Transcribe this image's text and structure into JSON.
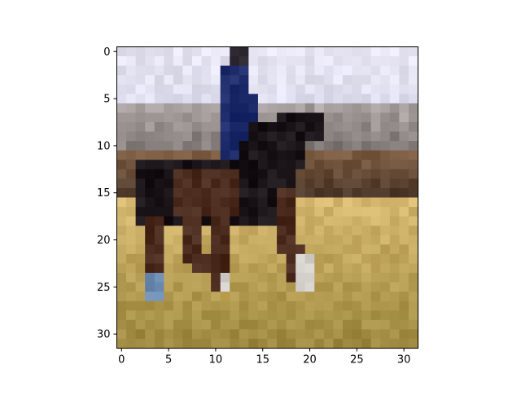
{
  "chart_data": {
    "type": "heatmap",
    "title": "",
    "xlabel": "",
    "ylabel": "",
    "image_size": 32,
    "xlim": [
      -0.5,
      31.5
    ],
    "ylim": [
      31.5,
      -0.5
    ],
    "x_ticks": [
      0,
      5,
      10,
      15,
      20,
      25,
      30
    ],
    "y_ticks": [
      0,
      5,
      10,
      15,
      20,
      25,
      30
    ],
    "x_tick_labels": [
      "0",
      "5",
      "10",
      "15",
      "20",
      "25",
      "30"
    ],
    "y_tick_labels": [
      "0",
      "5",
      "10",
      "15",
      "20",
      "25",
      "30"
    ],
    "palette": {
      "sky": "#e6e4f2",
      "sky_dim": "#d6d8ea",
      "hills_light": "#b0a8a8",
      "hills_mid": "#8a8282",
      "hills_dark": "#6a625e",
      "field_brown": "#7a5a40",
      "field_dark": "#3a2a20",
      "horse_black": "#1a1418",
      "horse_brown": "#4a2a1c",
      "rider_blue": "#1c2a6a",
      "rider_bright": "#2a5ac8",
      "grass_light": "#d6b870",
      "grass_mid": "#c0a250",
      "grass_dark": "#98843a",
      "leg_white": "#d0ccc8",
      "hoof_blue": "#6a8ab0",
      "head_dark": "#302a34"
    },
    "regions": [
      {
        "name": "sky",
        "rows": [
          0,
          6
        ],
        "cols": [
          0,
          31
        ],
        "color": "sky"
      },
      {
        "name": "hills",
        "rows": [
          6,
          11
        ],
        "cols": [
          0,
          31
        ],
        "color": "hills_light"
      },
      {
        "name": "field-dark-band",
        "rows": [
          11,
          16
        ],
        "cols": [
          0,
          31
        ],
        "color": "field_brown"
      },
      {
        "name": "grass",
        "rows": [
          16,
          31
        ],
        "cols": [
          0,
          31
        ],
        "color": "grass_light"
      },
      {
        "name": "rider-body",
        "rows": [
          2,
          13
        ],
        "cols": [
          11,
          14
        ],
        "color": "rider_blue"
      },
      {
        "name": "rider-head",
        "rows": [
          0,
          2
        ],
        "cols": [
          12,
          13
        ],
        "color": "head_dark"
      },
      {
        "name": "rider-leg",
        "rows": [
          12,
          15
        ],
        "cols": [
          10,
          12
        ],
        "color": "rider_bright"
      },
      {
        "name": "horse-neck",
        "rows": [
          7,
          12
        ],
        "cols": [
          14,
          21
        ],
        "color": "horse_black"
      },
      {
        "name": "horse-body",
        "rows": [
          12,
          19
        ],
        "cols": [
          1,
          20
        ],
        "color": "horse_black"
      },
      {
        "name": "horse-legs",
        "rows": [
          19,
          27
        ],
        "cols": [
          3,
          21
        ],
        "color": "horse_brown"
      }
    ]
  }
}
